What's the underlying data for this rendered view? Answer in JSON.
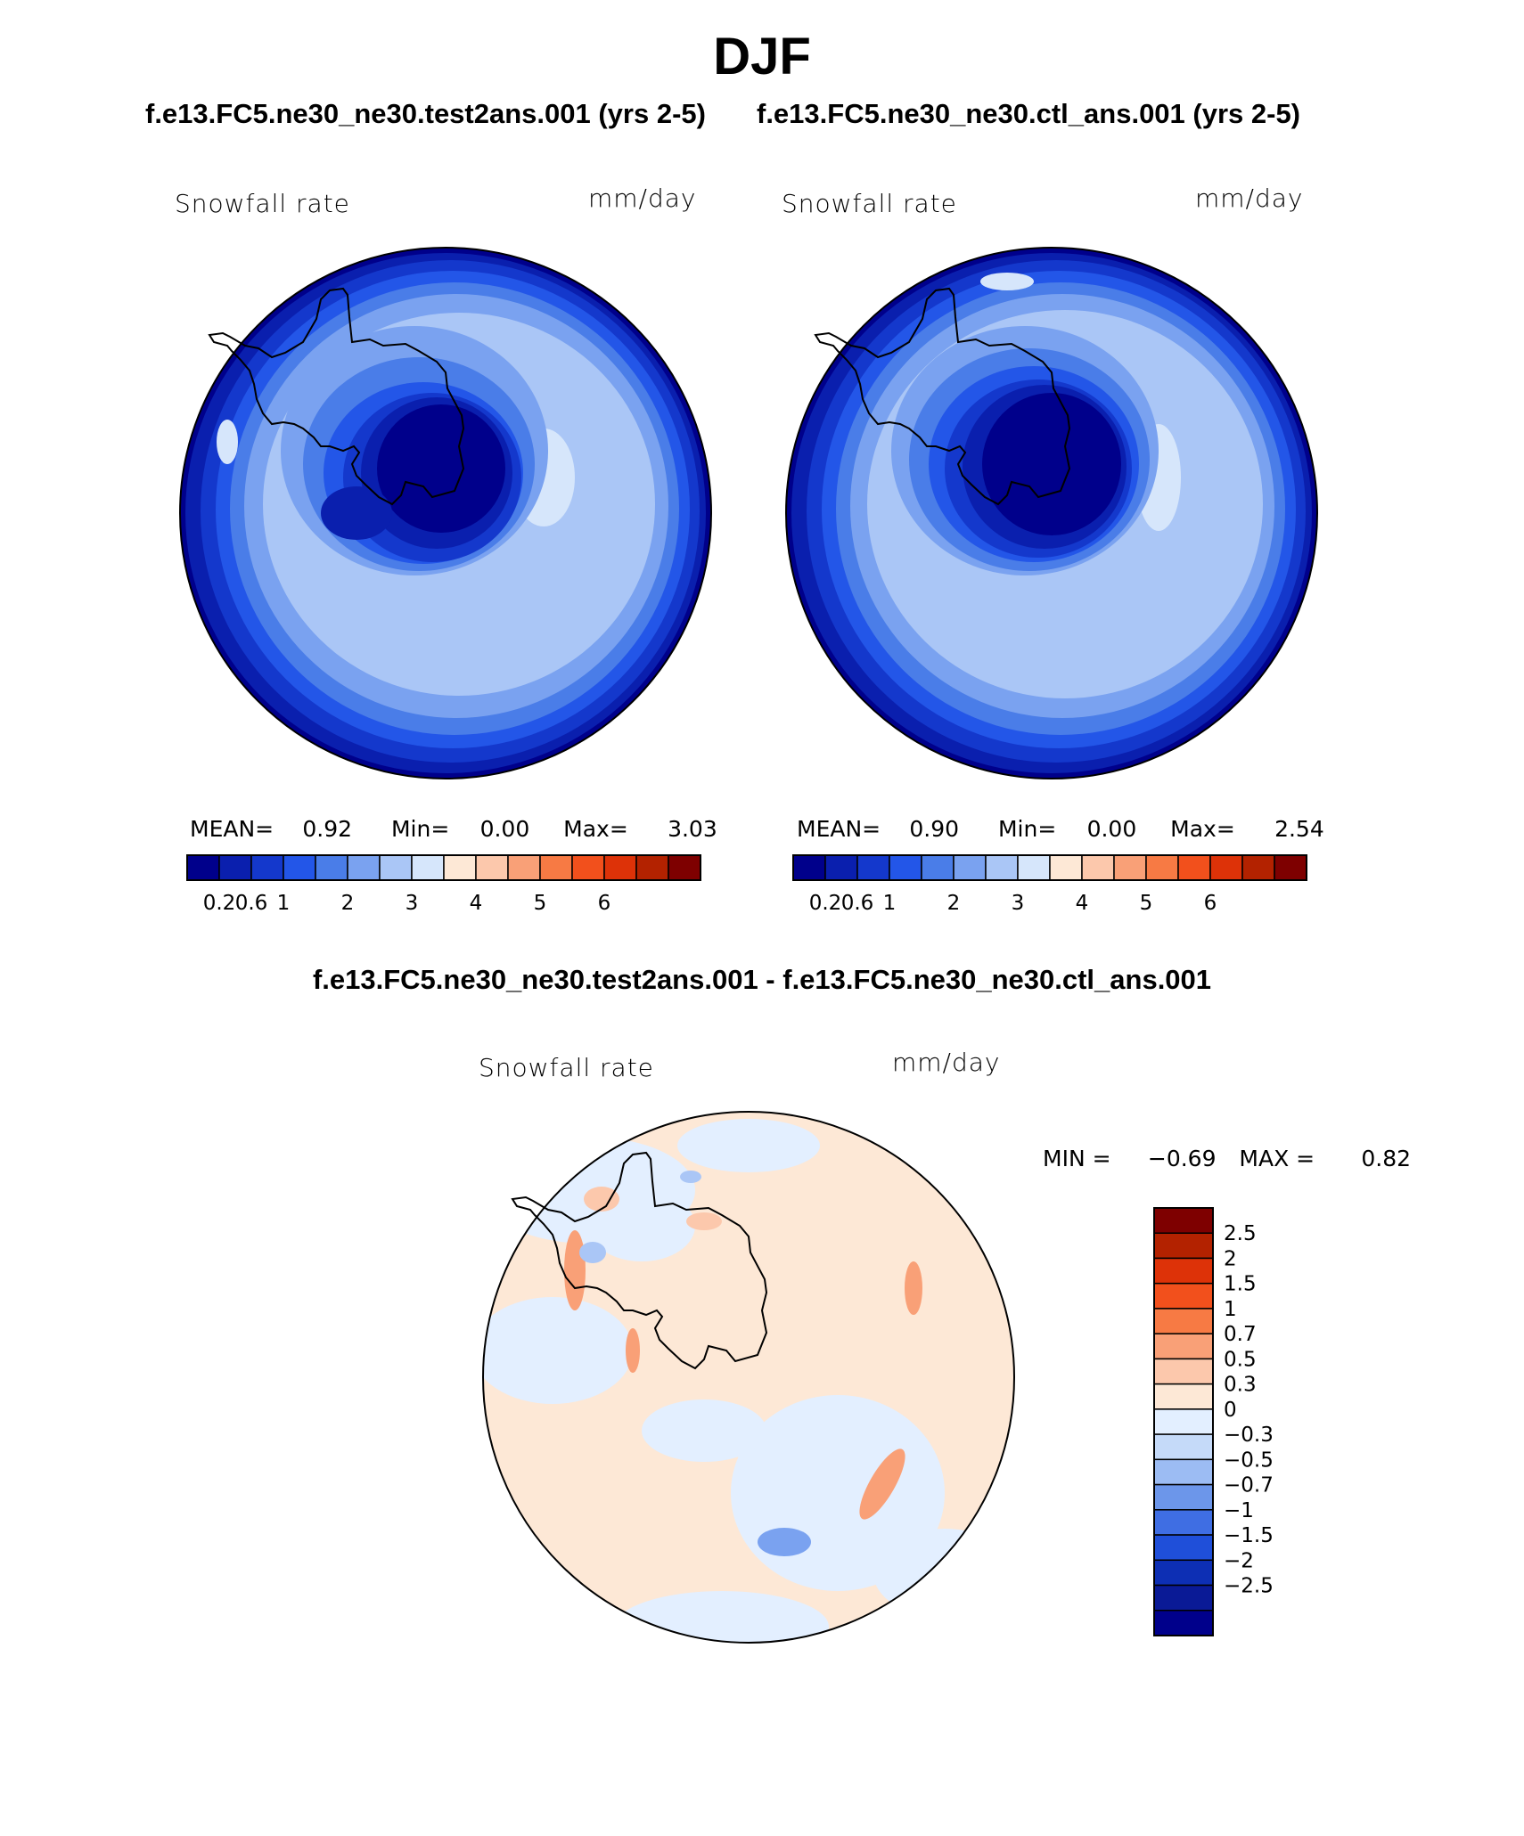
{
  "title": "DJF",
  "case1_header": "f.e13.FC5.ne30_ne30.test2ans.001 (yrs 2-5)",
  "case2_header": "f.e13.FC5.ne30_ne30.ctl_ans.001 (yrs 2-5)",
  "diff_header": "f.e13.FC5.ne30_ne30.test2ans.001 - f.e13.FC5.ne30_ne30.ctl_ans.001",
  "panels": [
    {
      "variable": "Snowfall rate",
      "units": "mm/day",
      "stats": {
        "mean_label": "MEAN=",
        "mean": "0.92",
        "min_label": "Min=",
        "min": "0.00",
        "max_label": "Max=",
        "max": "3.03"
      }
    },
    {
      "variable": "Snowfall rate",
      "units": "mm/day",
      "stats": {
        "mean_label": "MEAN=",
        "mean": "0.90",
        "min_label": "Min=",
        "min": "0.00",
        "max_label": "Max=",
        "max": "2.54"
      }
    },
    {
      "variable": "Snowfall rate",
      "units": "mm/day",
      "stats": {
        "min_label": "MIN =",
        "min": "−0.69",
        "max_label": "MAX =",
        "max": "0.82"
      }
    }
  ],
  "colorbar_abs": {
    "colors": [
      "#00008b",
      "#0a1fae",
      "#1438cc",
      "#2356e8",
      "#4a7de8",
      "#7aa2f0",
      "#aac6f6",
      "#d6e6fb",
      "#fde8d6",
      "#fcc8ac",
      "#f9a077",
      "#f77a44",
      "#f2501c",
      "#dd3208",
      "#b32200",
      "#7e0000"
    ],
    "tick_labels": [
      "0.2",
      "0.6",
      "1",
      "2",
      "3",
      "4",
      "5",
      "6"
    ]
  },
  "colorbar_diff": {
    "colors": [
      "#7e0000",
      "#b32200",
      "#dd3208",
      "#f2501c",
      "#f77a44",
      "#f9a077",
      "#fcc8ac",
      "#fde8d6",
      "#e3efff",
      "#c5daf9",
      "#9cbcf3",
      "#6c96ea",
      "#3f6ee3",
      "#1f4fd9",
      "#0d2fb4",
      "#0a1a96",
      "#00008b"
    ],
    "tick_labels": [
      "2.5",
      "2",
      "1.5",
      "1",
      "0.7",
      "0.5",
      "0.3",
      "0",
      "−0.3",
      "−0.5",
      "−0.7",
      "−1",
      "−1.5",
      "−2",
      "−2.5"
    ]
  }
}
